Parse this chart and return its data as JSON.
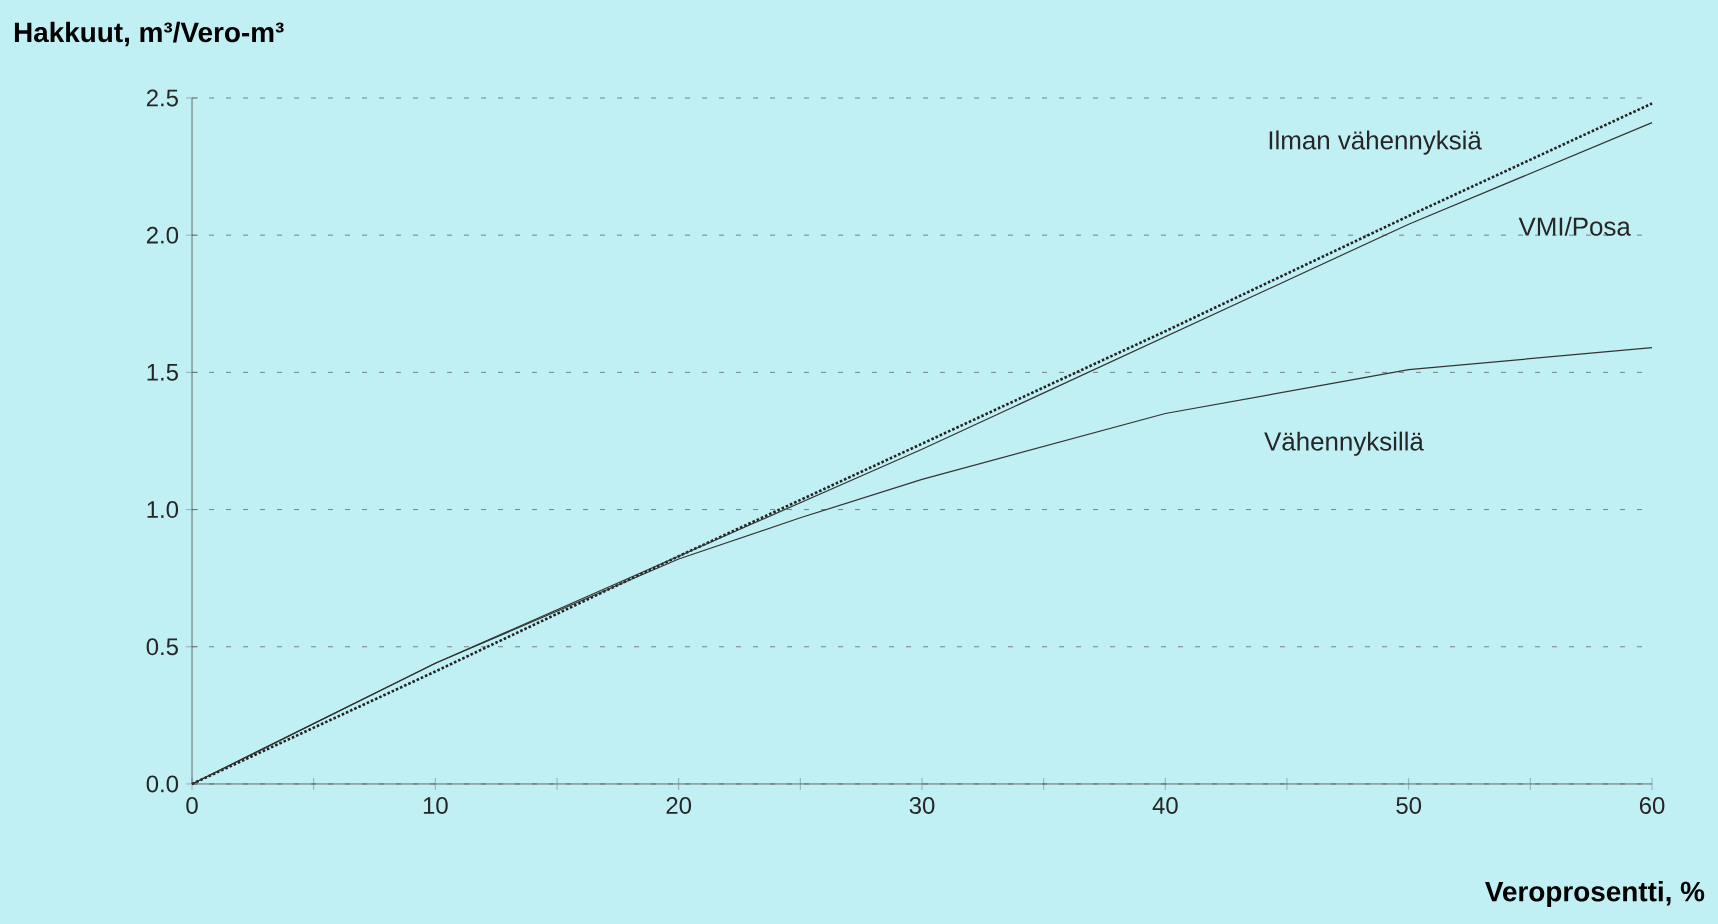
{
  "chart_data": {
    "type": "line",
    "xlabel": "Veroprosentti, %",
    "ylabel": "Hakkuut, m³/Vero-m³",
    "xlim": [
      0,
      60
    ],
    "ylim": [
      0,
      2.5
    ],
    "xticks": [
      0,
      {
        "value": 5,
        "label": null
      },
      10,
      {
        "value": 15,
        "label": null
      },
      20,
      {
        "value": 25,
        "label": null
      },
      30,
      {
        "value": 35,
        "label": null
      },
      40,
      {
        "value": 45,
        "label": null
      },
      50,
      {
        "value": 55,
        "label": null
      },
      60
    ],
    "yticks": [
      {
        "value": 0,
        "label": "0.0"
      },
      0.5,
      {
        "value": 1,
        "label": "1.0"
      },
      1.5,
      {
        "value": 2,
        "label": "2.0"
      },
      2.5
    ],
    "grid": "y",
    "series": [
      {
        "name": "Ilman vähennyksiä",
        "color": "#222222",
        "line_style": "dotted",
        "x": [
          0,
          10,
          20,
          30,
          40,
          50,
          60
        ],
        "values": [
          0,
          0.41,
          0.83,
          1.24,
          1.65,
          2.07,
          2.48
        ]
      },
      {
        "name": "VMI/Posa",
        "color": "#333333",
        "line_style": "solid",
        "x": [
          0,
          10,
          20,
          30,
          40,
          50,
          60
        ],
        "values": [
          0,
          0.44,
          0.83,
          1.22,
          1.63,
          2.04,
          2.41
        ]
      },
      {
        "name": "Vähennyksillä",
        "color": "#333333",
        "line_style": "solid",
        "x": [
          0,
          10,
          20,
          25,
          30,
          40,
          50,
          60
        ],
        "values": [
          0,
          0.44,
          0.82,
          0.97,
          1.11,
          1.35,
          1.51,
          1.59
        ]
      }
    ]
  }
}
